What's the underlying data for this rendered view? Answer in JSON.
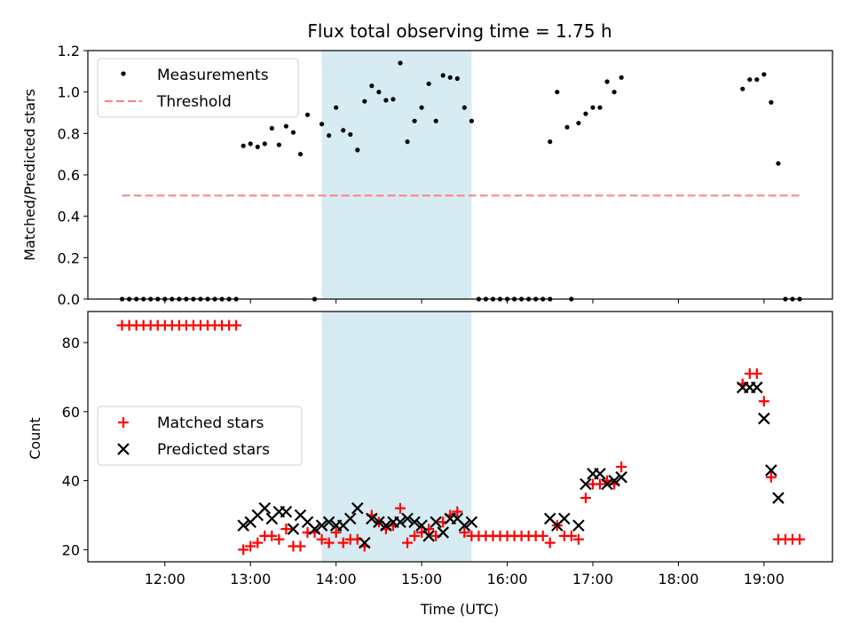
{
  "chart_data": [
    {
      "type": "scatter",
      "title": "Flux total observing time = 1.75 h",
      "ylabel": "Matched/Predicted stars",
      "xlabel": "",
      "ylim": [
        0,
        1.2
      ],
      "xlim": [
        "11:06",
        "19:48"
      ],
      "y_ticks": [
        "0.0",
        "0.2",
        "0.4",
        "0.6",
        "0.8",
        "1.0",
        "1.2"
      ],
      "legend_placement": "upper-left",
      "shaded_interval": [
        "13:50",
        "15:35"
      ],
      "series": [
        {
          "name": "Measurements",
          "marker": "dot",
          "color": "#000000",
          "points": [
            [
              "11:30",
              0
            ],
            [
              "11:35",
              0
            ],
            [
              "11:40",
              0
            ],
            [
              "11:45",
              0
            ],
            [
              "11:50",
              0
            ],
            [
              "11:55",
              0
            ],
            [
              "12:00",
              0
            ],
            [
              "12:05",
              0
            ],
            [
              "12:10",
              0
            ],
            [
              "12:15",
              0
            ],
            [
              "12:20",
              0
            ],
            [
              "12:25",
              0
            ],
            [
              "12:30",
              0
            ],
            [
              "12:35",
              0
            ],
            [
              "12:40",
              0
            ],
            [
              "12:45",
              0
            ],
            [
              "12:50",
              0
            ],
            [
              "12:55",
              0.74
            ],
            [
              "13:00",
              0.75
            ],
            [
              "13:05",
              0.735
            ],
            [
              "13:10",
              0.75
            ],
            [
              "13:15",
              0.825
            ],
            [
              "13:20",
              0.745
            ],
            [
              "13:25",
              0.835
            ],
            [
              "13:30",
              0.805
            ],
            [
              "13:35",
              0.7
            ],
            [
              "13:40",
              0.89
            ],
            [
              "13:45",
              0
            ],
            [
              "13:50",
              0.845
            ],
            [
              "13:55",
              0.79
            ],
            [
              "14:00",
              0.925
            ],
            [
              "14:05",
              0.815
            ],
            [
              "14:10",
              0.795
            ],
            [
              "14:15",
              0.72
            ],
            [
              "14:20",
              0.955
            ],
            [
              "14:25",
              1.03
            ],
            [
              "14:30",
              1.0
            ],
            [
              "14:35",
              0.96
            ],
            [
              "14:40",
              0.965
            ],
            [
              "14:45",
              1.14
            ],
            [
              "14:50",
              0.76
            ],
            [
              "14:55",
              0.86
            ],
            [
              "15:00",
              0.925
            ],
            [
              "15:05",
              1.04
            ],
            [
              "15:10",
              0.86
            ],
            [
              "15:15",
              1.08
            ],
            [
              "15:20",
              1.07
            ],
            [
              "15:25",
              1.065
            ],
            [
              "15:30",
              0.925
            ],
            [
              "15:35",
              0.86
            ],
            [
              "15:40",
              0
            ],
            [
              "15:45",
              0
            ],
            [
              "15:50",
              0
            ],
            [
              "15:55",
              0
            ],
            [
              "16:00",
              0
            ],
            [
              "16:05",
              0
            ],
            [
              "16:10",
              0
            ],
            [
              "16:15",
              0
            ],
            [
              "16:20",
              0
            ],
            [
              "16:25",
              0
            ],
            [
              "16:30",
              0
            ],
            [
              "16:30",
              0.76
            ],
            [
              "16:35",
              1.0
            ],
            [
              "16:42",
              0.83
            ],
            [
              "16:45",
              0
            ],
            [
              "16:50",
              0.85
            ],
            [
              "16:55",
              0.895
            ],
            [
              "17:00",
              0.925
            ],
            [
              "17:05",
              0.925
            ],
            [
              "17:10",
              1.05
            ],
            [
              "17:15",
              1.0
            ],
            [
              "17:20",
              1.07
            ],
            [
              "18:45",
              1.015
            ],
            [
              "18:50",
              1.06
            ],
            [
              "18:55",
              1.06
            ],
            [
              "19:00",
              1.085
            ],
            [
              "19:05",
              0.95
            ],
            [
              "19:10",
              0.655
            ],
            [
              "19:15",
              0
            ],
            [
              "19:20",
              0
            ],
            [
              "19:25",
              0
            ]
          ]
        },
        {
          "name": "Threshold",
          "marker": "dashed-line",
          "color": "#ff8080",
          "points": [
            [
              "11:30",
              0.5
            ],
            [
              "19:25",
              0.5
            ]
          ]
        }
      ]
    },
    {
      "type": "scatter",
      "title": "",
      "ylabel": "Count",
      "xlabel": "Time (UTC)",
      "ylim": [
        16.5,
        89
      ],
      "xlim": [
        "11:06",
        "19:48"
      ],
      "y_ticks": [
        "20",
        "40",
        "60",
        "80"
      ],
      "x_tick_labels": [
        "12:00",
        "13:00",
        "14:00",
        "15:00",
        "16:00",
        "17:00",
        "18:00",
        "19:00"
      ],
      "legend_placement": "center-left",
      "shaded_interval": [
        "13:50",
        "15:35"
      ],
      "series": [
        {
          "name": "Matched stars",
          "marker": "plus",
          "color": "#ff0000",
          "points": [
            [
              "11:30",
              85
            ],
            [
              "11:35",
              85
            ],
            [
              "11:40",
              85
            ],
            [
              "11:45",
              85
            ],
            [
              "11:50",
              85
            ],
            [
              "11:55",
              85
            ],
            [
              "12:00",
              85
            ],
            [
              "12:05",
              85
            ],
            [
              "12:10",
              85
            ],
            [
              "12:15",
              85
            ],
            [
              "12:20",
              85
            ],
            [
              "12:25",
              85
            ],
            [
              "12:30",
              85
            ],
            [
              "12:35",
              85
            ],
            [
              "12:40",
              85
            ],
            [
              "12:45",
              85
            ],
            [
              "12:50",
              85
            ],
            [
              "12:55",
              20
            ],
            [
              "13:00",
              21
            ],
            [
              "13:05",
              22
            ],
            [
              "13:10",
              24
            ],
            [
              "13:15",
              24
            ],
            [
              "13:20",
              23
            ],
            [
              "13:25",
              26
            ],
            [
              "13:30",
              21
            ],
            [
              "13:35",
              21
            ],
            [
              "13:40",
              25
            ],
            [
              "13:45",
              25
            ],
            [
              "13:50",
              23
            ],
            [
              "13:55",
              22
            ],
            [
              "14:00",
              25
            ],
            [
              "14:05",
              22
            ],
            [
              "14:10",
              23
            ],
            [
              "14:15",
              23
            ],
            [
              "14:20",
              21
            ],
            [
              "14:25",
              30
            ],
            [
              "14:30",
              28
            ],
            [
              "14:35",
              26
            ],
            [
              "14:40",
              27
            ],
            [
              "14:45",
              32
            ],
            [
              "14:50",
              22
            ],
            [
              "14:55",
              24
            ],
            [
              "15:00",
              25
            ],
            [
              "15:05",
              26
            ],
            [
              "15:10",
              24
            ],
            [
              "15:15",
              28
            ],
            [
              "15:20",
              30
            ],
            [
              "15:25",
              31
            ],
            [
              "15:30",
              25
            ],
            [
              "15:35",
              24
            ],
            [
              "15:40",
              24
            ],
            [
              "15:45",
              24
            ],
            [
              "15:50",
              24
            ],
            [
              "15:55",
              24
            ],
            [
              "16:00",
              24
            ],
            [
              "16:05",
              24
            ],
            [
              "16:10",
              24
            ],
            [
              "16:15",
              24
            ],
            [
              "16:20",
              24
            ],
            [
              "16:25",
              24
            ],
            [
              "16:30",
              22
            ],
            [
              "16:35",
              27
            ],
            [
              "16:40",
              24
            ],
            [
              "16:45",
              24
            ],
            [
              "16:50",
              23
            ],
            [
              "16:55",
              35
            ],
            [
              "17:00",
              39
            ],
            [
              "17:05",
              39
            ],
            [
              "17:10",
              40
            ],
            [
              "17:15",
              39
            ],
            [
              "17:20",
              44
            ],
            [
              "18:45",
              68
            ],
            [
              "18:50",
              71
            ],
            [
              "18:55",
              71
            ],
            [
              "19:00",
              63
            ],
            [
              "19:05",
              41
            ],
            [
              "19:10",
              23
            ],
            [
              "19:15",
              23
            ],
            [
              "19:20",
              23
            ],
            [
              "19:25",
              23
            ]
          ]
        },
        {
          "name": "Predicted stars",
          "marker": "x",
          "color": "#000000",
          "points": [
            [
              "12:55",
              27
            ],
            [
              "13:00",
              28
            ],
            [
              "13:05",
              30
            ],
            [
              "13:10",
              32
            ],
            [
              "13:15",
              29
            ],
            [
              "13:20",
              31
            ],
            [
              "13:25",
              31
            ],
            [
              "13:30",
              26
            ],
            [
              "13:35",
              30
            ],
            [
              "13:40",
              28
            ],
            [
              "13:45",
              26
            ],
            [
              "13:50",
              27
            ],
            [
              "13:55",
              28
            ],
            [
              "14:00",
              27
            ],
            [
              "14:05",
              27
            ],
            [
              "14:10",
              29
            ],
            [
              "14:15",
              32
            ],
            [
              "14:20",
              22
            ],
            [
              "14:25",
              29
            ],
            [
              "14:30",
              28
            ],
            [
              "14:35",
              27
            ],
            [
              "14:40",
              28
            ],
            [
              "14:45",
              28
            ],
            [
              "14:50",
              29
            ],
            [
              "14:55",
              28
            ],
            [
              "15:00",
              27
            ],
            [
              "15:05",
              24
            ],
            [
              "15:10",
              28
            ],
            [
              "15:15",
              25
            ],
            [
              "15:20",
              29
            ],
            [
              "15:25",
              29
            ],
            [
              "15:30",
              27
            ],
            [
              "15:35",
              28
            ],
            [
              "16:30",
              29
            ],
            [
              "16:35",
              27
            ],
            [
              "16:40",
              29
            ],
            [
              "16:50",
              27
            ],
            [
              "16:55",
              39
            ],
            [
              "17:00",
              42
            ],
            [
              "17:05",
              42
            ],
            [
              "17:10",
              39
            ],
            [
              "17:15",
              40
            ],
            [
              "17:20",
              41
            ],
            [
              "18:45",
              67
            ],
            [
              "18:50",
              67
            ],
            [
              "18:55",
              67
            ],
            [
              "19:00",
              58
            ],
            [
              "19:05",
              43
            ],
            [
              "19:10",
              35
            ]
          ]
        }
      ]
    }
  ]
}
